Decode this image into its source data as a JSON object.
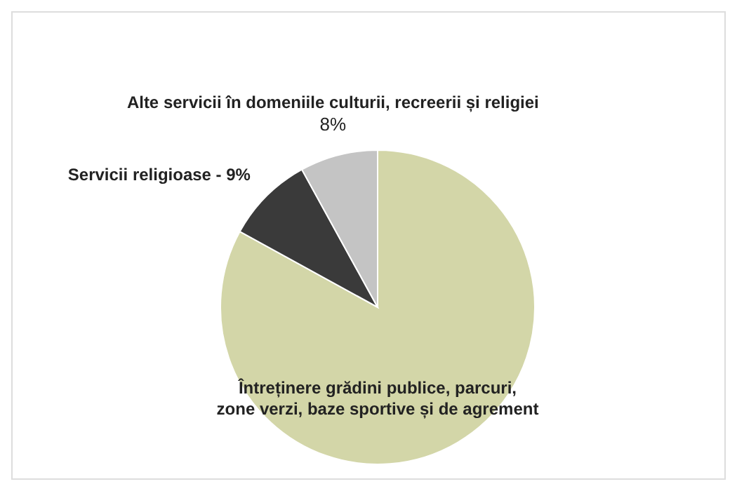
{
  "chart_data": {
    "type": "pie",
    "categories": [
      "Întreținere grădini publice, parcuri, zone verzi, baze sportive și de agrement",
      "Servicii religioase - 9%",
      "Alte servicii în domeniile culturii, recreerii și religiei"
    ],
    "values": [
      83,
      9,
      8
    ],
    "colors": [
      "#d3d6a8",
      "#3a3a3a",
      "#c4c4c4"
    ],
    "value_labels": [
      null,
      null,
      "8%"
    ],
    "legend": false
  }
}
